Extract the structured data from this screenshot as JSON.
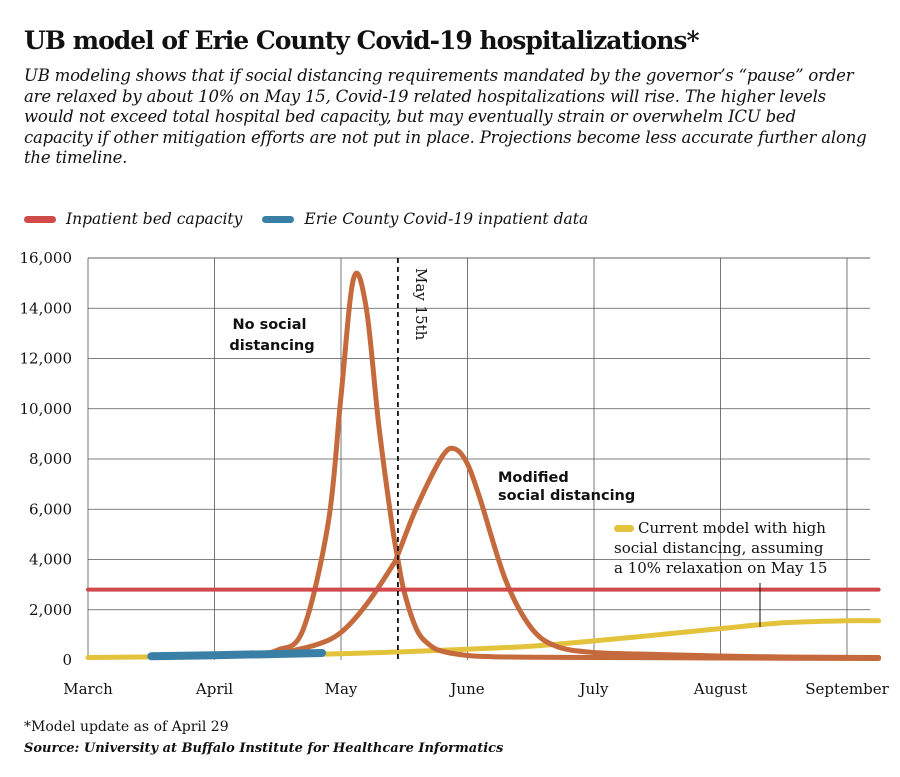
{
  "header": {
    "title": "UB model of Erie County Covid-19 hospitalizations*",
    "subtitle": "UB modeling shows that if social distancing requirements mandated by the governor’s “pause” order are relaxed by about 10% on May 15, Covid-19 related hospitalizations will rise. The higher levels would not exceed total hospital bed capacity, but may eventually strain or overwhelm ICU bed capacity if other mitigation efforts are not put in place. Projections become less accurate further along the timeline."
  },
  "legend": {
    "items": [
      {
        "label": "Inpatient bed capacity",
        "color": "#d04a4a"
      },
      {
        "label": "Erie County Covid-19 inpatient data",
        "color": "#3a7fa6"
      }
    ]
  },
  "annotations": {
    "no_distancing": [
      "No social",
      "distancing"
    ],
    "modified": [
      "Modified",
      "social distancing"
    ],
    "current_model": [
      "Current model with high",
      "social distancing, assuming",
      "a 10% relaxation on May 15"
    ],
    "may15": "May 15th"
  },
  "footer": {
    "footnote": "*Model update as of April 29",
    "source": "Source: University at Buffalo Institute for Healthcare Informatics"
  },
  "chart_data": {
    "type": "line",
    "title": "UB model of Erie County Covid-19 hospitalizations*",
    "xlabel": "",
    "ylabel": "",
    "x_unit": "months since March 1",
    "categories": [
      "March",
      "April",
      "May",
      "June",
      "July",
      "August",
      "September"
    ],
    "ylim": [
      0,
      16000
    ],
    "yticks": [
      0,
      2000,
      4000,
      6000,
      8000,
      10000,
      12000,
      14000,
      16000
    ],
    "ytick_labels": [
      "0",
      "2,000",
      "4,000",
      "6,000",
      "8,000",
      "10,000",
      "12,000",
      "14,000",
      "16,000"
    ],
    "grid": true,
    "vline": {
      "x": 2.45,
      "label": "May 15th"
    },
    "series": [
      {
        "name": "Inpatient bed capacity",
        "color": "#d04a4a",
        "x": [
          0,
          6.25
        ],
        "y": [
          2800,
          2800
        ]
      },
      {
        "name": "No social distancing",
        "color": "#c56a3c",
        "x": [
          1.0,
          1.3,
          1.5,
          1.7,
          1.9,
          2.0,
          2.1,
          2.2,
          2.3,
          2.4,
          2.45,
          2.5,
          2.6,
          2.7,
          2.8,
          3.0,
          3.2,
          3.5,
          4.0,
          5.0,
          6.25
        ],
        "y": [
          200,
          240,
          400,
          1200,
          5500,
          10500,
          15200,
          14000,
          9300,
          5500,
          4000,
          2700,
          1200,
          600,
          350,
          180,
          130,
          110,
          100,
          80,
          60
        ]
      },
      {
        "name": "Modified social distancing",
        "color": "#c56a3c",
        "x": [
          1.5,
          1.8,
          2.0,
          2.2,
          2.4,
          2.45,
          2.6,
          2.8,
          2.9,
          3.0,
          3.1,
          3.3,
          3.5,
          3.7,
          4.0,
          4.5,
          5.0,
          5.5,
          6.25
        ],
        "y": [
          250,
          600,
          1100,
          2200,
          3700,
          4200,
          6100,
          8100,
          8400,
          7800,
          6400,
          3200,
          1300,
          550,
          300,
          220,
          160,
          120,
          100
        ]
      },
      {
        "name": "Current model with high social distancing, assuming a 10% relaxation on May 15",
        "color": "#e3c23c",
        "x": [
          0,
          1.0,
          2.0,
          2.5,
          3.0,
          3.5,
          4.0,
          4.5,
          5.0,
          5.5,
          6.0,
          6.25
        ],
        "y": [
          100,
          150,
          250,
          330,
          430,
          550,
          760,
          1000,
          1250,
          1480,
          1560,
          1560
        ]
      },
      {
        "name": "Erie County Covid-19 inpatient data",
        "color": "#3a7fa6",
        "x": [
          0.5,
          1.0,
          1.5,
          1.85
        ],
        "y": [
          150,
          190,
          240,
          280
        ]
      }
    ]
  }
}
